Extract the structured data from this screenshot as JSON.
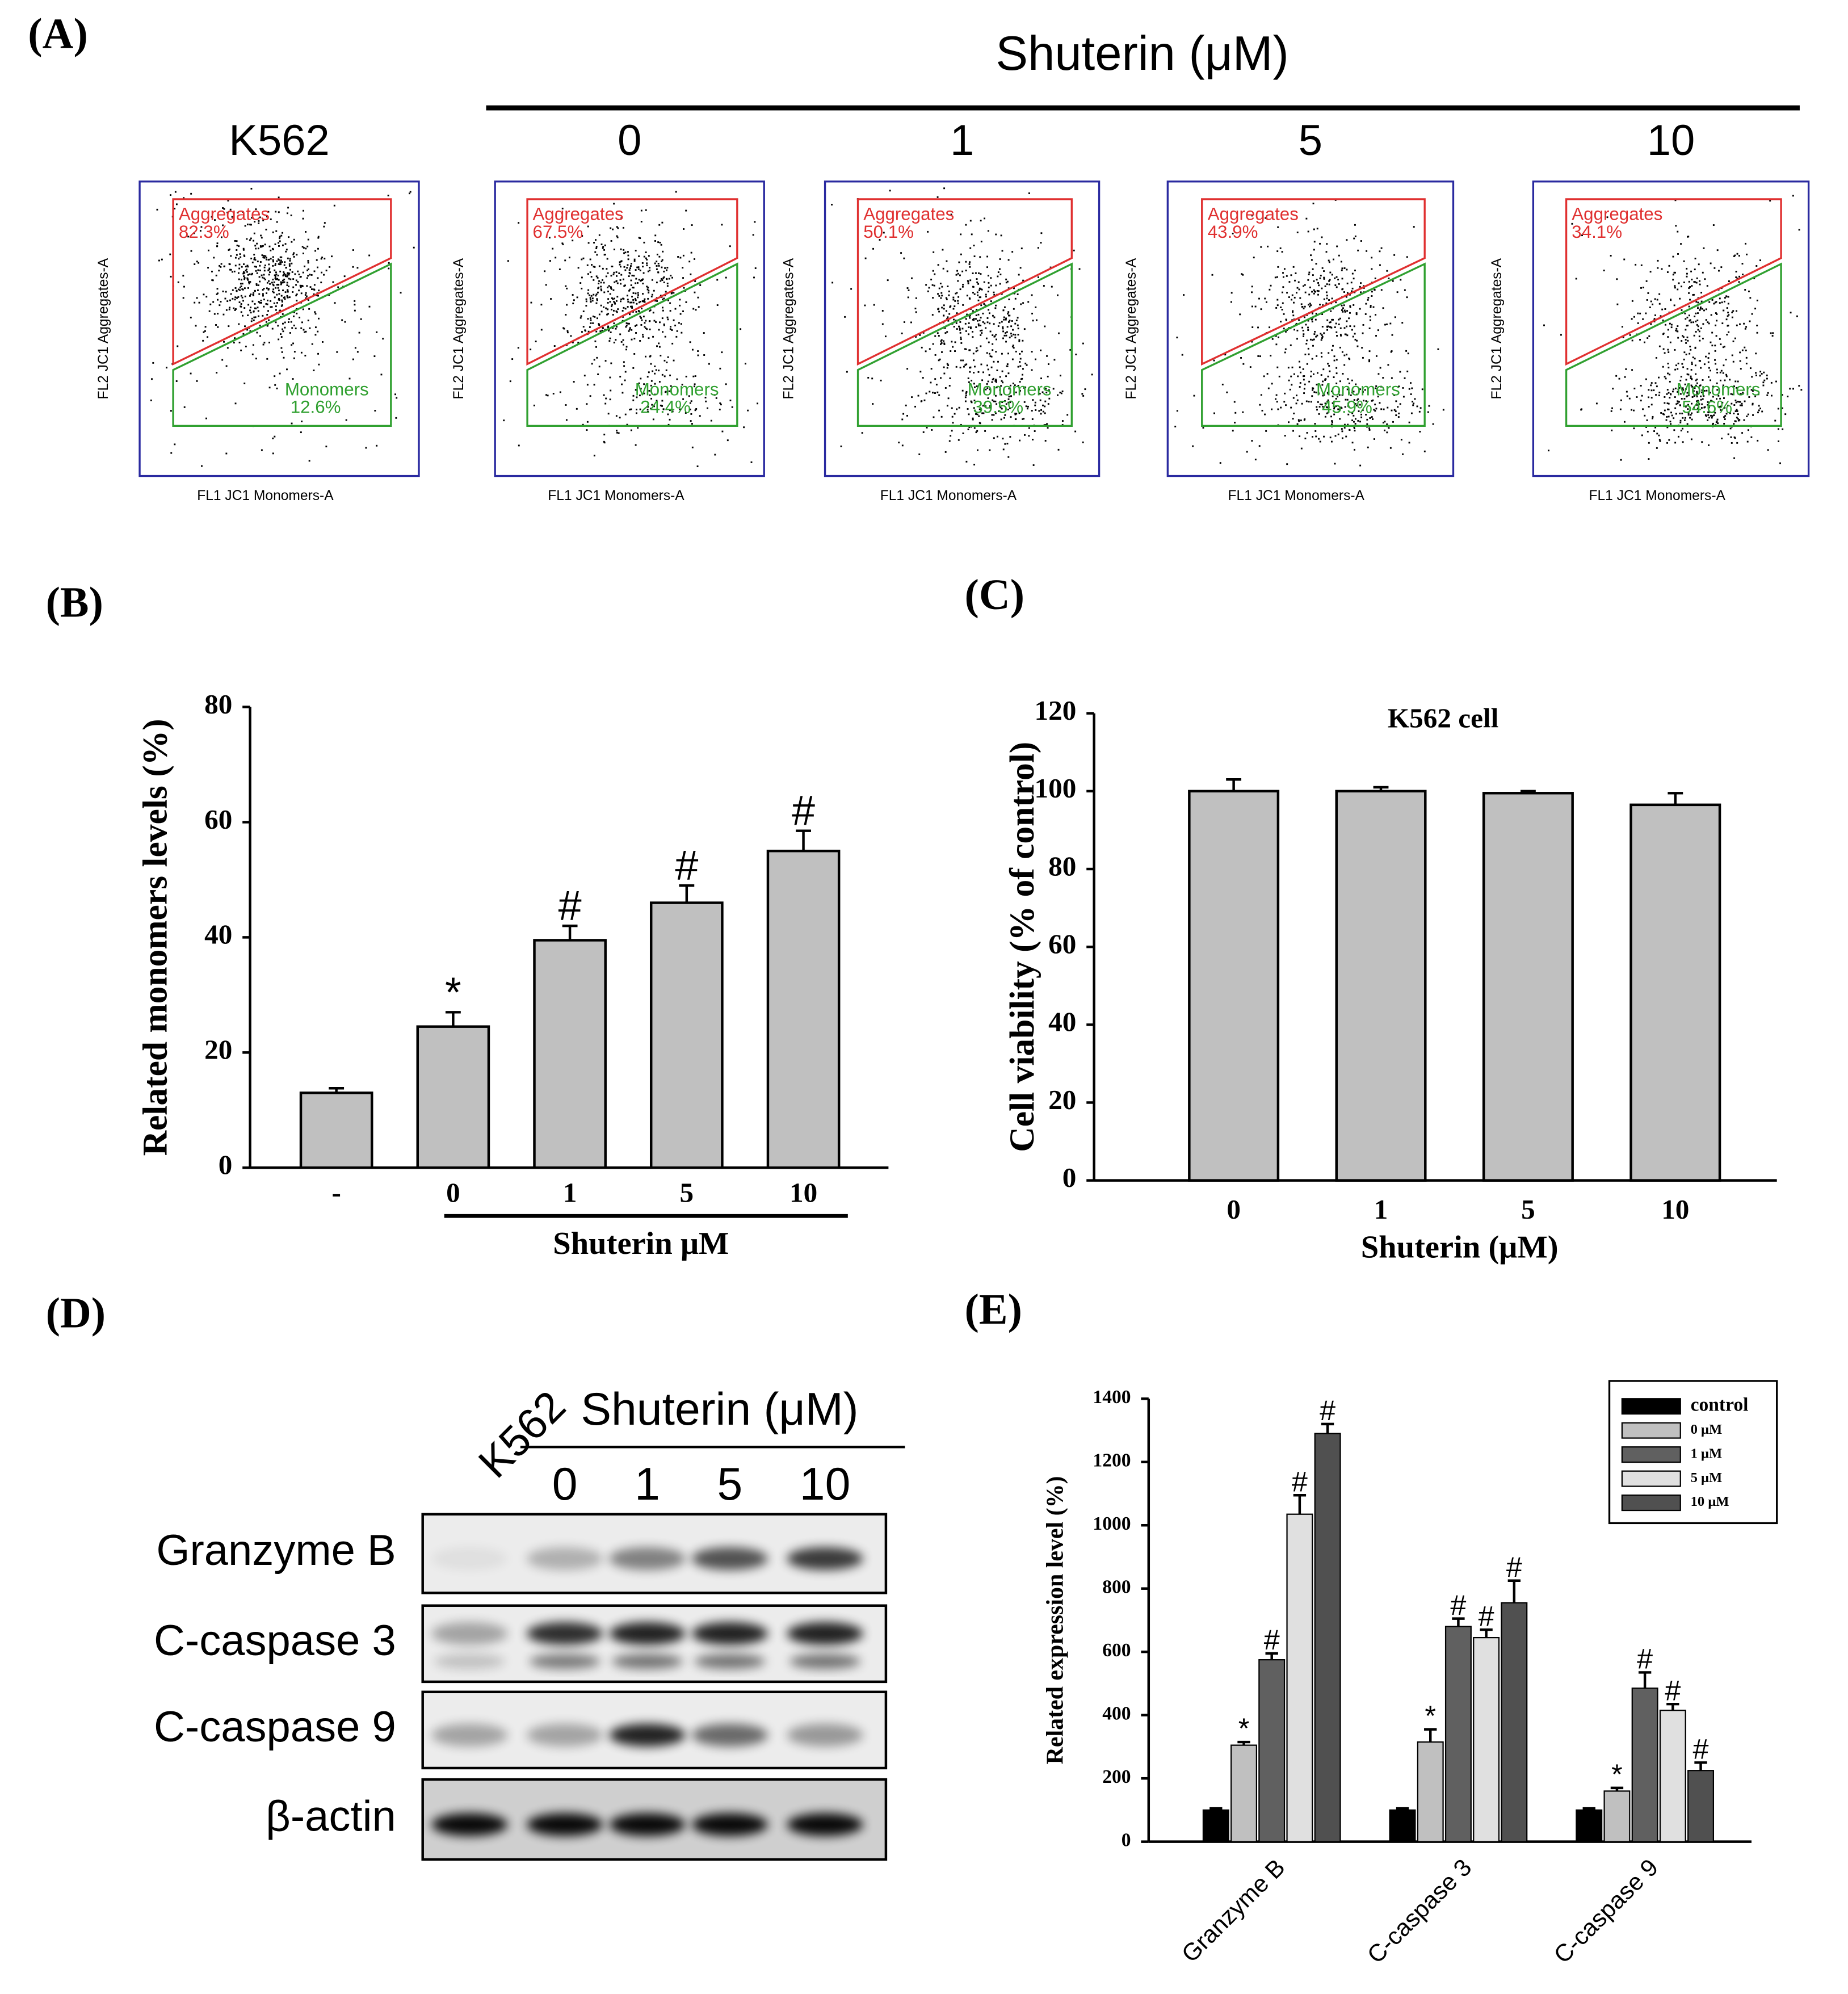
{
  "panel_labels": [
    "(A)",
    "(B)",
    "(C)",
    "(D)",
    "(E)"
  ],
  "flow_cytometry": {
    "title": "Shuterin (μM)",
    "x_label": "FL1 JC1 Monomers-A",
    "y_label": "FL2 JC1 Aggregates-A",
    "gate_names": [
      "Aggregates",
      "Monomers"
    ],
    "panels": [
      {
        "label": "K562",
        "aggregates": "82.3%",
        "monomers": "12.6%"
      },
      {
        "label": "0",
        "aggregates": "67.5%",
        "monomers": "24.4%"
      },
      {
        "label": "1",
        "aggregates": "50.1%",
        "monomers": "39.5%"
      },
      {
        "label": "5",
        "aggregates": "43.9%",
        "monomers": "45.9%"
      },
      {
        "label": "10",
        "aggregates": "34.1%",
        "monomers": "54.6%"
      }
    ]
  },
  "chart_data": [
    {
      "type": "bar",
      "ylabel": "Related monomers levels (%)",
      "xlabel": "Shuterin μM",
      "categories": [
        "-",
        "0",
        "1",
        "5",
        "10"
      ],
      "values": [
        13,
        24.5,
        39.5,
        46,
        55
      ],
      "errors": [
        0.8,
        2.5,
        2.5,
        3,
        3.5
      ],
      "annotations": [
        null,
        "*",
        "#",
        "#",
        "#"
      ],
      "color": "#c0c0c0",
      "ylim": [
        0,
        80
      ],
      "yticks": [
        0,
        20,
        40,
        60,
        80
      ]
    },
    {
      "type": "bar",
      "title": "K562 cell",
      "ylabel": "Cell viability (% of control)",
      "xlabel": "Shuterin (μM)",
      "categories": [
        "0",
        "1",
        "5",
        "10"
      ],
      "values": [
        100,
        100,
        99.5,
        96.5
      ],
      "errors": [
        3,
        1,
        0.5,
        3
      ],
      "color": "#c0c0c0",
      "ylim": [
        0,
        120
      ],
      "yticks": [
        0,
        20,
        40,
        60,
        80,
        100,
        120
      ]
    },
    {
      "type": "grouped-bar",
      "ylabel": "Related expression level (%)",
      "categories": [
        "Granzyme B",
        "C-caspase 3",
        "C-caspase 9"
      ],
      "series": [
        {
          "name": "control",
          "color": "#000000",
          "values": [
            100,
            100,
            100
          ],
          "errors": [
            5,
            5,
            5
          ],
          "annotations": [
            null,
            null,
            null
          ]
        },
        {
          "name": "0 μM",
          "color": "#c0c0c0",
          "values": [
            305,
            315,
            160
          ],
          "errors": [
            10,
            40,
            10
          ],
          "annotations": [
            "*",
            "*",
            "*"
          ]
        },
        {
          "name": "1 μM",
          "color": "#606060",
          "values": [
            575,
            680,
            485
          ],
          "errors": [
            20,
            25,
            50
          ],
          "annotations": [
            "#",
            "#",
            "#"
          ]
        },
        {
          "name": "5 μM",
          "color": "#e0e0e0",
          "values": [
            1035,
            645,
            415
          ],
          "errors": [
            60,
            25,
            20
          ],
          "annotations": [
            "#",
            "#",
            "#"
          ]
        },
        {
          "name": "10 μM",
          "color": "#505050",
          "values": [
            1290,
            755,
            225
          ],
          "errors": [
            30,
            70,
            25
          ],
          "annotations": [
            "#",
            "#",
            "#"
          ]
        }
      ],
      "legend": "upper right",
      "ylim": [
        0,
        1400
      ],
      "yticks": [
        0,
        200,
        400,
        600,
        800,
        1000,
        1200,
        1400
      ]
    }
  ],
  "western_blot": {
    "title": "Shuterin (μM)",
    "control_lane": "K562",
    "lanes": [
      "0",
      "1",
      "5",
      "10"
    ],
    "rows": [
      "Granzyme B",
      "C-caspase 3",
      "C-caspase 9",
      "β-actin"
    ]
  }
}
